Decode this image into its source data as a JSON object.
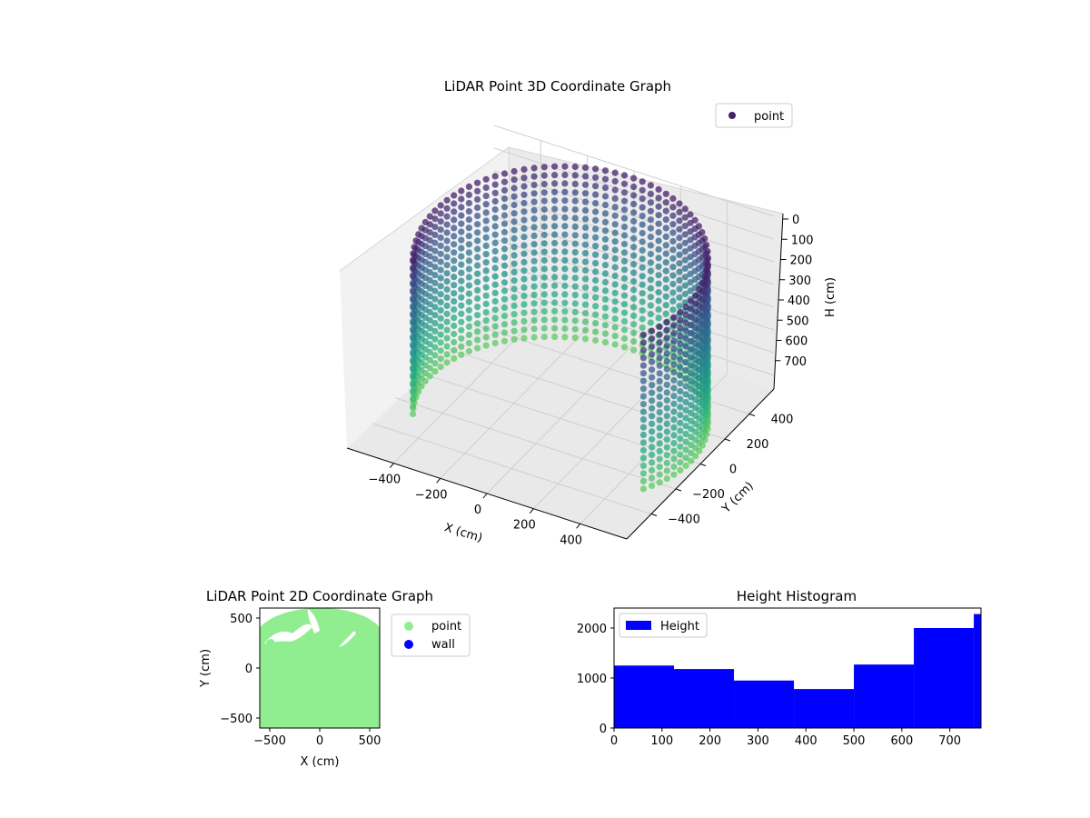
{
  "chart_data": [
    {
      "type": "scatter3d",
      "title": "LiDAR Point 3D Coordinate Graph",
      "xlabel": "X (cm)",
      "ylabel": "Y (cm)",
      "zlabel": "H (cm)",
      "xticks": [
        -400,
        -200,
        0,
        200,
        400
      ],
      "yticks": [
        -400,
        -200,
        0,
        200,
        400
      ],
      "zticks": [
        0,
        100,
        200,
        300,
        400,
        500,
        600,
        700
      ],
      "xlim": [
        -600,
        600
      ],
      "ylim": [
        -600,
        600
      ],
      "zlim": [
        0,
        760
      ],
      "z_inverted": true,
      "colormap": "viridis",
      "legend": {
        "placement": "top-right",
        "entries": [
          {
            "label": "point",
            "color": "#46206a"
          }
        ]
      },
      "series": [
        {
          "name": "point",
          "shape": "cylindrical wall",
          "radius": 560,
          "height": 760,
          "open_arc_deg": [
            210,
            330
          ]
        }
      ],
      "grid": true
    },
    {
      "type": "scatter",
      "title": "LiDAR Point 2D Coordinate Graph",
      "xlabel": "X (cm)",
      "ylabel": "Y (cm)",
      "xticks": [
        -500,
        0,
        500
      ],
      "yticks": [
        -500,
        0,
        500
      ],
      "xlim": [
        -600,
        600
      ],
      "ylim": [
        -600,
        600
      ],
      "legend": {
        "placement": "right-outside",
        "entries": [
          {
            "label": "point",
            "color": "#90ee90"
          },
          {
            "label": "wall",
            "color": "#0000ff"
          }
        ]
      }
    },
    {
      "type": "bar",
      "title": "Height Histogram",
      "xlabel": "",
      "ylabel": "",
      "bin_edges": [
        0,
        125,
        250,
        375,
        500,
        625,
        750,
        765
      ],
      "values": [
        1250,
        1180,
        950,
        780,
        1270,
        2000,
        2280
      ],
      "xticks": [
        0,
        100,
        200,
        300,
        400,
        500,
        600,
        700
      ],
      "yticks": [
        0,
        1000,
        2000
      ],
      "xlim": [
        0,
        765
      ],
      "ylim": [
        0,
        2400
      ],
      "color": "#0000ff",
      "legend": {
        "placement": "top-left",
        "entries": [
          {
            "label": "Height",
            "color": "#0000ff"
          }
        ]
      }
    }
  ]
}
